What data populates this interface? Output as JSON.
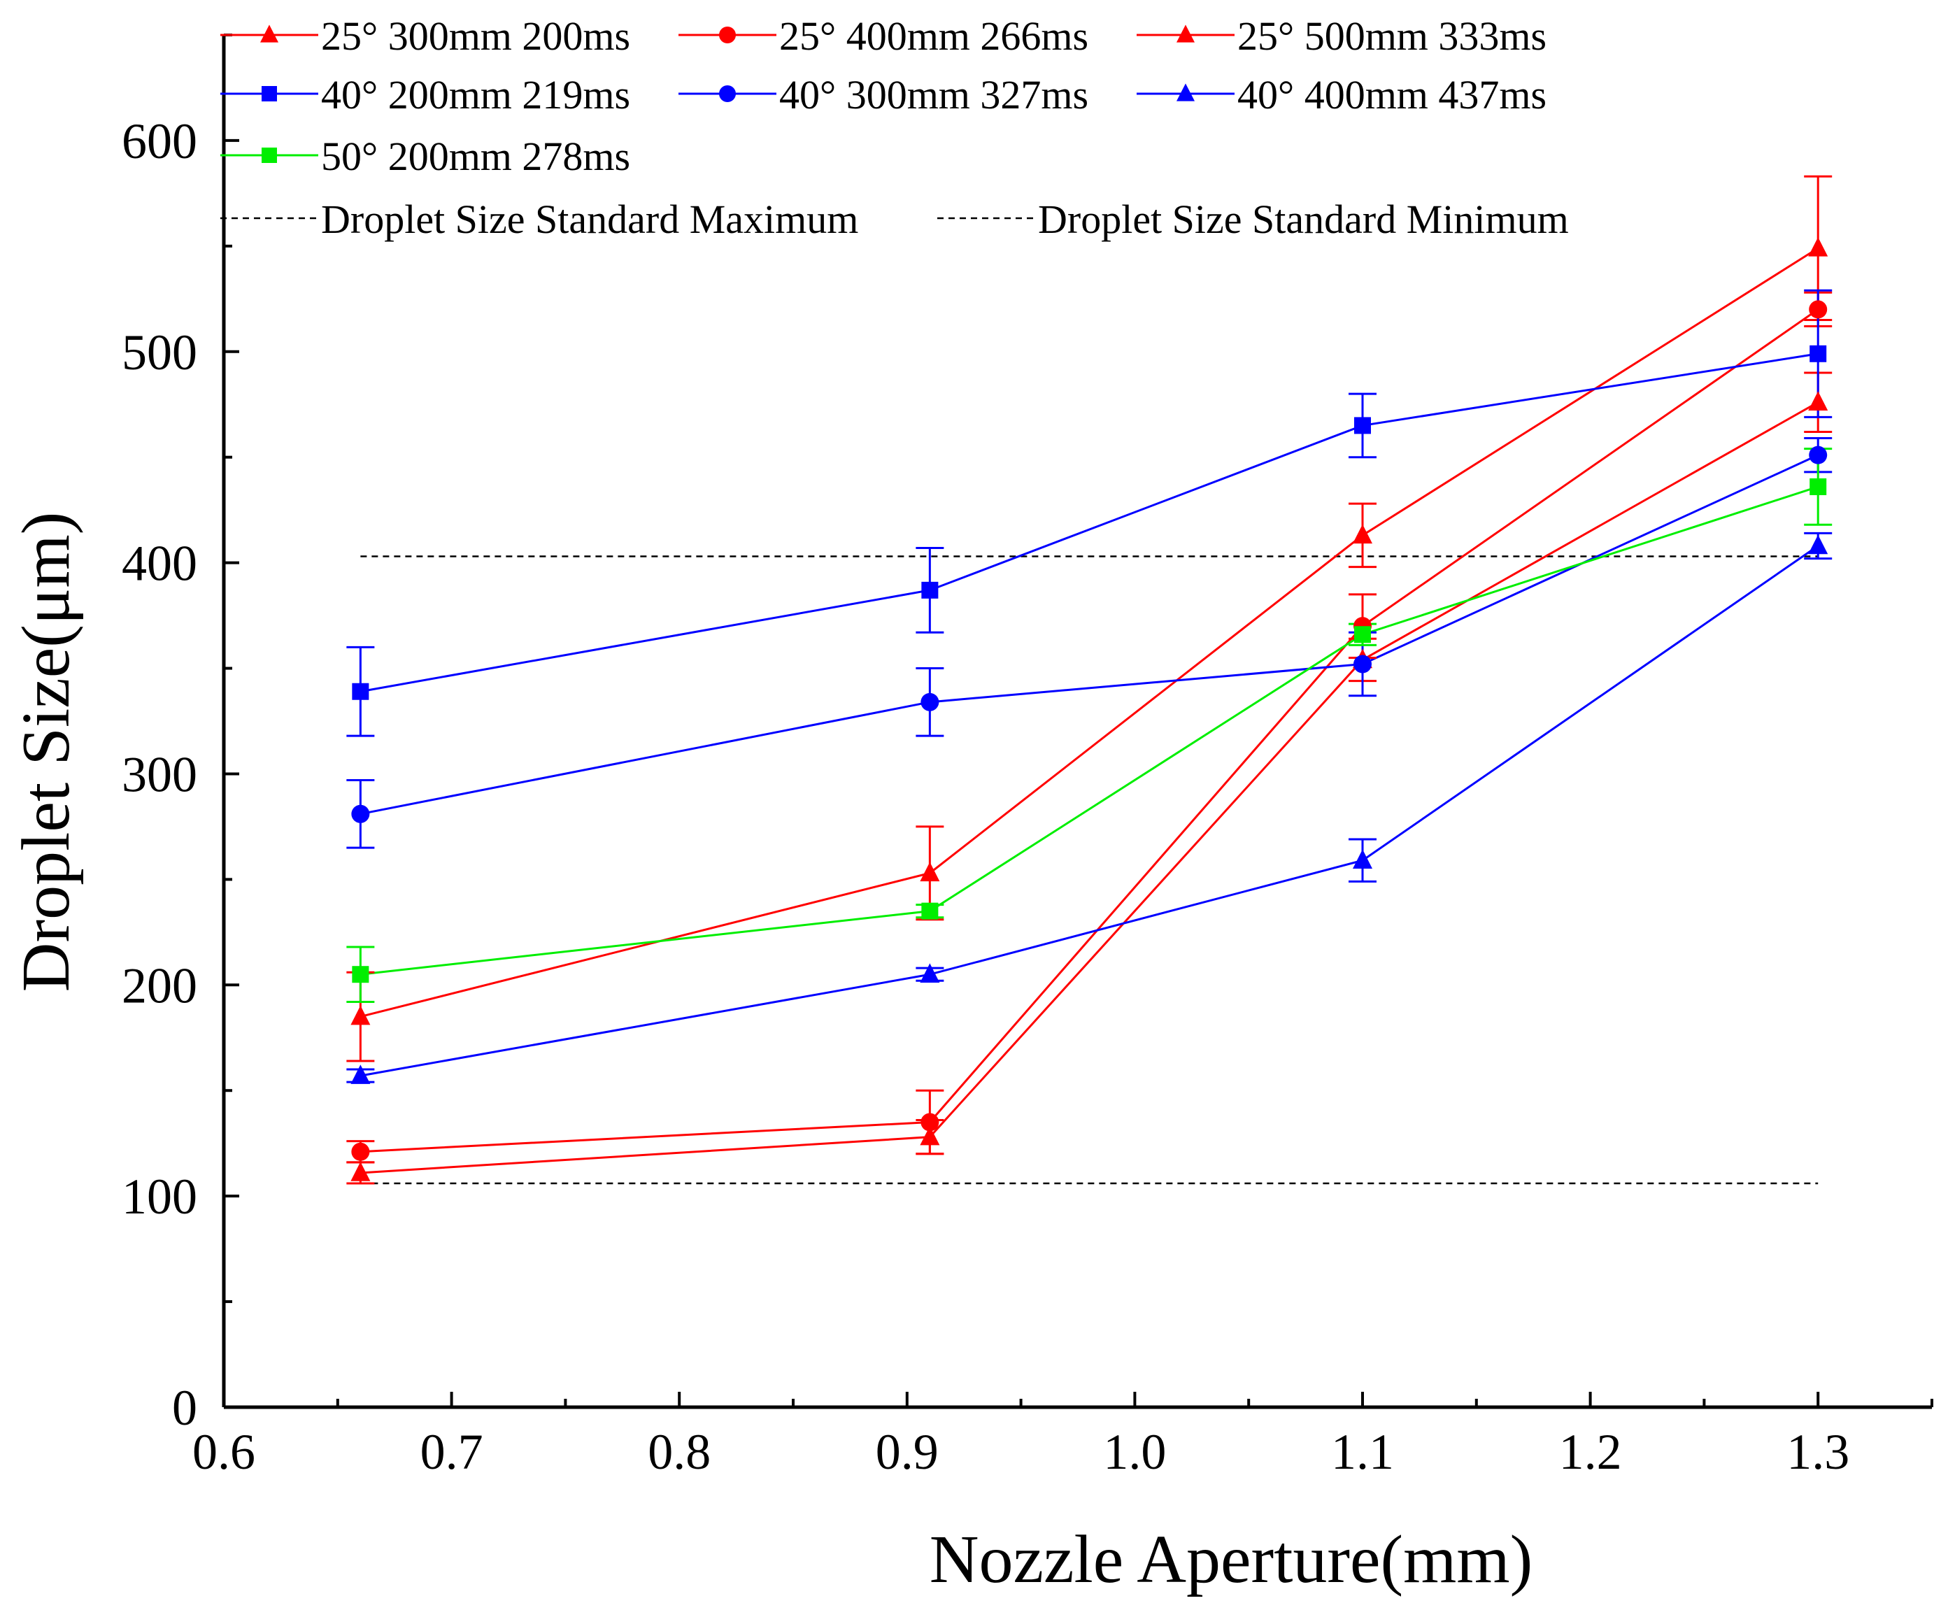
{
  "chart_data": {
    "type": "line",
    "title": "",
    "xlabel": "Nozzle Aperture(mm)",
    "ylabel": "Droplet Size(μm)",
    "xlim": [
      0.6,
      1.35
    ],
    "ylim": [
      0,
      650
    ],
    "xticks": [
      0.6,
      0.7,
      0.8,
      0.9,
      1.0,
      1.1,
      1.2,
      1.3
    ],
    "xtick_labels": [
      "0.6",
      "0.7",
      "0.8",
      "0.9",
      "1.0",
      "1.1",
      "1.2",
      "1.3"
    ],
    "yticks": [
      0,
      100,
      200,
      300,
      400,
      500,
      600
    ],
    "ytick_labels": [
      "0",
      "100",
      "200",
      "300",
      "400",
      "500",
      "600"
    ],
    "grid": false,
    "legend_position": "top",
    "x": [
      0.66,
      0.91,
      1.1,
      1.3
    ],
    "series": [
      {
        "name": "25° 300mm 200ms",
        "color": "#ff0000",
        "marker": "triangle",
        "values": [
          185,
          253,
          413,
          549
        ],
        "errors": [
          21,
          22,
          15,
          34
        ]
      },
      {
        "name": "25° 400mm 266ms",
        "color": "#ff0000",
        "marker": "circle",
        "values": [
          121,
          135,
          370,
          520
        ],
        "errors": [
          5,
          15,
          15,
          8
        ]
      },
      {
        "name": "25° 500mm 333ms",
        "color": "#ff0000",
        "marker": "triangle",
        "values": [
          111,
          128,
          354,
          476
        ],
        "errors": [
          5,
          8,
          10,
          14
        ]
      },
      {
        "name": "40° 200mm 219ms",
        "color": "#0000ff",
        "marker": "square",
        "values": [
          339,
          387,
          465,
          499
        ],
        "errors": [
          21,
          20,
          15,
          30
        ]
      },
      {
        "name": "40° 300mm 327ms",
        "color": "#0000ff",
        "marker": "circle",
        "values": [
          281,
          334,
          352,
          451
        ],
        "errors": [
          16,
          16,
          15,
          8
        ]
      },
      {
        "name": "40° 400mm 437ms",
        "color": "#0000ff",
        "marker": "triangle",
        "values": [
          157,
          205,
          259,
          408
        ],
        "errors": [
          3,
          3,
          10,
          6
        ]
      },
      {
        "name": "50° 200mm 278ms",
        "color": "#00ee00",
        "marker": "square",
        "values": [
          205,
          235,
          366,
          436
        ],
        "errors": [
          13,
          3,
          5,
          18
        ]
      }
    ],
    "reference_lines": [
      {
        "name": "Droplet Size Standard Maximum",
        "color": "#000000",
        "style": "dashed",
        "value": 403,
        "x_range": [
          0.66,
          1.3
        ]
      },
      {
        "name": "Droplet Size Standard Minimum",
        "color": "#000000",
        "style": "dashed",
        "value": 106,
        "x_range": [
          0.66,
          1.3
        ]
      }
    ]
  }
}
